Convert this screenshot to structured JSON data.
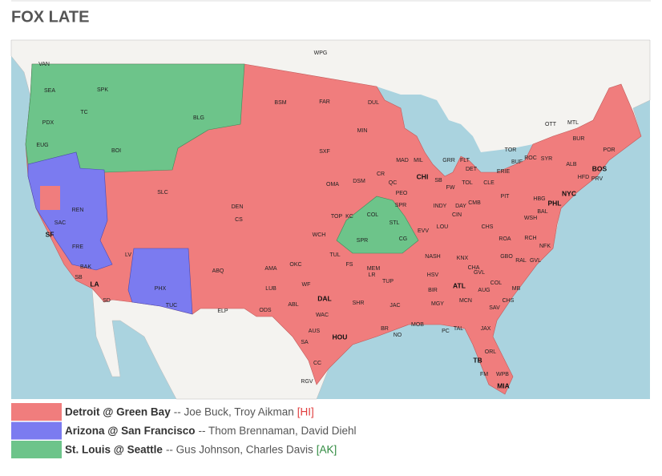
{
  "header": {
    "title": "FOX LATE"
  },
  "legend": [
    {
      "game": "Detroit @ Green Bay",
      "announcers": "-- Joe Buck, Troy Aikman",
      "tag": "[HI]",
      "color": "#f07d7d",
      "tag_color": "#e03c3c"
    },
    {
      "game": "Arizona @ San Francisco",
      "announcers": "-- Thom Brennaman, David Diehl",
      "tag": null,
      "color": "#7b7bf0",
      "tag_color": null
    },
    {
      "game": "St. Louis @ Seattle",
      "announcers": "-- Gus Johnson, Charles Davis",
      "tag": "[AK]",
      "color": "#6dc48a",
      "tag_color": "#2f8a3f"
    }
  ],
  "map": {
    "labels": [
      "VAN",
      "WPG",
      "SEA",
      "SPK",
      "TC",
      "PDX",
      "BLG",
      "BSM",
      "FAR",
      "DUL",
      "OTT",
      "MTL",
      "EUG",
      "BOI",
      "MIN",
      "SXF",
      "MAD",
      "MIL",
      "GRR",
      "FLT",
      "TOR",
      "ROC",
      "BUF",
      "SYR",
      "BUR",
      "POR",
      "ALB",
      "BOS",
      "PRV",
      "HFD",
      "NYC",
      "DET",
      "CHI",
      "OMA",
      "DSM",
      "CR",
      "QC",
      "SLC",
      "TOL",
      "CLE",
      "ERIE",
      "SB",
      "FW",
      "PIT",
      "HBG",
      "PHL",
      "PEO",
      "DEN",
      "CS",
      "REN",
      "SAC",
      "SF",
      "FRE",
      "TOP",
      "KC",
      "SPR",
      "COL",
      "STL",
      "INDY",
      "DAY",
      "CMB",
      "CIN",
      "WSH",
      "BAL",
      "CHS",
      "LOU",
      "EVV",
      "WCH",
      "SPR",
      "CG",
      "RCH",
      "ROA",
      "NFK",
      "LV",
      "TUL",
      "NASH",
      "KNX",
      "GBO",
      "RAL",
      "GVL",
      "ABQ",
      "AMA",
      "OKC",
      "FS",
      "MEM",
      "CHA",
      "BAK",
      "LR",
      "TUP",
      "HSV",
      "GVL",
      "SB",
      "LA",
      "PHX",
      "LUB",
      "WF",
      "ATL",
      "BIR",
      "AUG",
      "COL",
      "MB",
      "SD",
      "TUC",
      "DAL",
      "ODS",
      "ABL",
      "SHR",
      "JAC",
      "MGY",
      "MCN",
      "CHS",
      "SAV",
      "ELP",
      "WAC",
      "MOB",
      "TAL",
      "JAX",
      "AUS",
      "HOU",
      "BR",
      "NO",
      "PC",
      "SA",
      "ORL",
      "CC",
      "TB",
      "RGV",
      "FM",
      "WPB",
      "MIA"
    ]
  }
}
